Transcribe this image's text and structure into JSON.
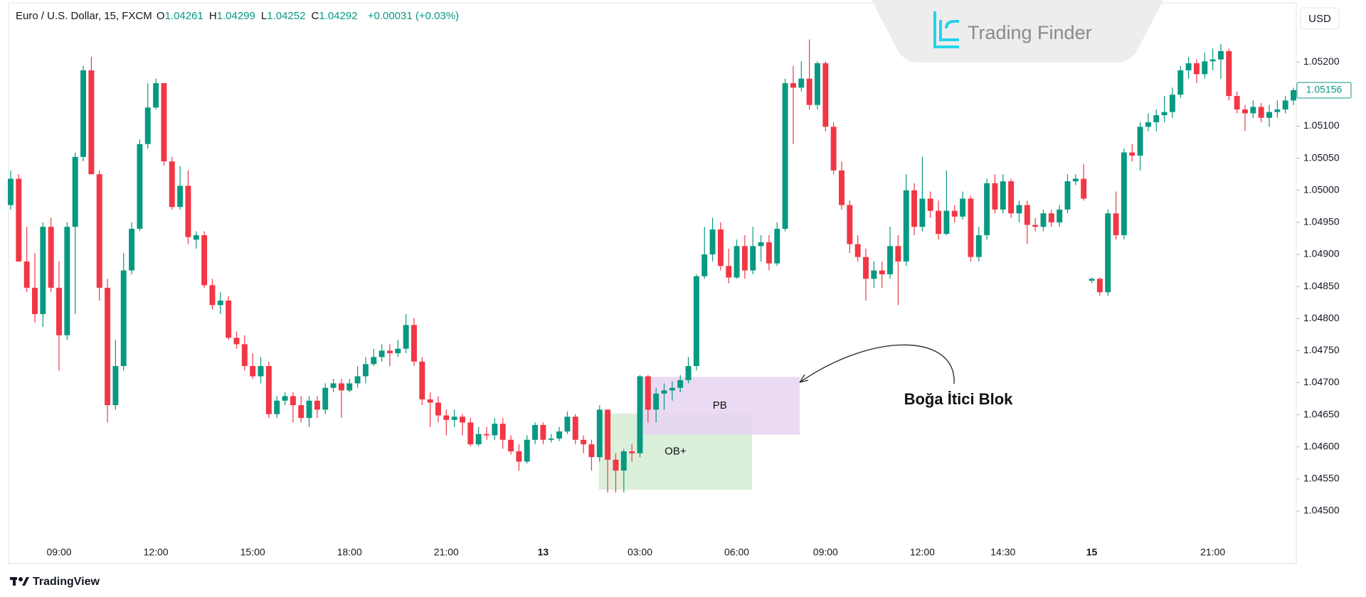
{
  "header": {
    "symbol": "Euro / U.S. Dollar, 15, FXCM",
    "ohlc": [
      {
        "label": "O",
        "value": "1.04261"
      },
      {
        "label": "H",
        "value": "1.04299"
      },
      {
        "label": "L",
        "value": "1.04252"
      },
      {
        "label": "C",
        "value": "1.04292"
      }
    ],
    "change": "+0.00031 (+0.03%)",
    "currency": "USD"
  },
  "brand": {
    "logo": "Trading Finder",
    "footer": "TradingView"
  },
  "chart_data": {
    "type": "candlestick",
    "up_color": "#089981",
    "down_color": "#f23645",
    "grid": false,
    "ylim": [
      1.04418,
      1.0529
    ],
    "yticks": [
      {
        "value": 1.045,
        "label": "1.04500"
      },
      {
        "value": 1.0455,
        "label": "1.04550"
      },
      {
        "value": 1.046,
        "label": "1.04600"
      },
      {
        "value": 1.0465,
        "label": "1.04650"
      },
      {
        "value": 1.047,
        "label": "1.04700"
      },
      {
        "value": 1.0475,
        "label": "1.04750"
      },
      {
        "value": 1.048,
        "label": "1.04800"
      },
      {
        "value": 1.0485,
        "label": "1.04850"
      },
      {
        "value": 1.049,
        "label": "1.04900"
      },
      {
        "value": 1.0495,
        "label": "1.04950"
      },
      {
        "value": 1.05,
        "label": "1.05000"
      },
      {
        "value": 1.0505,
        "label": "1.05050"
      },
      {
        "value": 1.051,
        "label": "1.05100"
      },
      {
        "value": 1.0515,
        "label": "1.05150"
      },
      {
        "value": 1.052,
        "label": "1.05200"
      }
    ],
    "categories": [
      null,
      null,
      null,
      null,
      null,
      null,
      "09:00",
      null,
      null,
      null,
      null,
      null,
      null,
      null,
      null,
      null,
      null,
      null,
      "12:00",
      null,
      null,
      null,
      null,
      null,
      null,
      null,
      null,
      null,
      null,
      null,
      "15:00",
      null,
      null,
      null,
      null,
      null,
      null,
      null,
      null,
      null,
      null,
      null,
      "18:00",
      null,
      null,
      null,
      null,
      null,
      null,
      null,
      null,
      null,
      null,
      null,
      "21:00",
      null,
      null,
      null,
      null,
      null,
      null,
      null,
      null,
      null,
      null,
      null,
      "13",
      null,
      null,
      null,
      null,
      null,
      null,
      null,
      null,
      null,
      null,
      null,
      "03:00",
      null,
      null,
      null,
      null,
      null,
      null,
      null,
      null,
      null,
      null,
      null,
      "06:00",
      null,
      null,
      null,
      null,
      null,
      null,
      null,
      null,
      null,
      null,
      "09:00",
      null,
      null,
      null,
      null,
      null,
      null,
      null,
      null,
      null,
      null,
      null,
      "12:00",
      null,
      null,
      null,
      null,
      null,
      null,
      null,
      null,
      null,
      "14:30",
      null,
      null,
      null,
      null,
      null,
      null,
      null,
      null,
      null,
      null,
      "15",
      null,
      null,
      null,
      null,
      null,
      null,
      null,
      null,
      null,
      null,
      null,
      null,
      null,
      null,
      "21:00",
      null,
      null,
      null,
      null,
      null,
      null,
      null,
      null,
      null,
      null
    ],
    "open": [
      1.04977,
      1.05018,
      1.04889,
      1.04848,
      1.04807,
      1.04943,
      1.04848,
      1.04774,
      1.04943,
      1.05052,
      1.05187,
      1.05025,
      1.04848,
      1.04665,
      1.04726,
      1.04875,
      1.0494,
      1.05072,
      1.05129,
      1.05167,
      1.05045,
      1.04974,
      1.05007,
      1.04923,
      1.0493,
      1.04852,
      1.04821,
      1.04828,
      1.0477,
      1.0476,
      1.04726,
      1.0471,
      1.04726,
      1.04651,
      1.04672,
      1.04679,
      1.04665,
      1.04645,
      1.04672,
      1.04658,
      1.04692,
      1.04699,
      1.04688,
      1.04699,
      1.0471,
      1.04729,
      1.0474,
      1.0475,
      1.04746,
      1.04753,
      1.0479,
      1.04733,
      1.04674,
      1.04669,
      1.04649,
      1.04642,
      1.04647,
      1.04638,
      1.04604,
      1.0462,
      1.04618,
      1.04636,
      1.04611,
      1.04593,
      1.04577,
      1.04611,
      1.04634,
      1.04611,
      1.04613,
      1.04624,
      1.04647,
      1.04611,
      1.04604,
      1.04584,
      1.04658,
      1.0458,
      1.04563,
      1.04593,
      1.0459,
      1.0471,
      1.04658,
      1.04683,
      1.04688,
      1.04692,
      1.04704,
      1.04726,
      1.04866,
      1.049,
      1.04939,
      1.04882,
      1.04864,
      1.04913,
      1.04875,
      1.04913,
      1.04919,
      1.04886,
      1.0494,
      1.05167,
      1.0516,
      1.05174,
      1.05133,
      1.05198,
      1.05099,
      1.05031,
      1.04977,
      1.04916,
      1.04896,
      1.04862,
      1.04875,
      1.04869,
      1.04913,
      1.04889,
      1.05,
      1.04943,
      1.04987,
      1.04968,
      1.04932,
      1.04968,
      1.04959,
      1.04987,
      1.04896,
      1.0493,
      1.05011,
      1.0497,
      1.05014,
      1.04964,
      1.04977,
      1.04946,
      1.04943,
      1.04964,
      1.0495,
      1.0497,
      1.05014,
      1.05018,
      1.04859,
      1.04862,
      1.04841,
      1.04964,
      1.0493,
      1.05059,
      1.05054,
      1.05099,
      1.05106,
      1.05117,
      1.05122,
      1.05149,
      1.05187,
      1.05198,
      1.05181,
      1.05201,
      1.05204,
      1.05217,
      1.05147,
      1.05126,
      1.0512,
      1.0513,
      1.05113,
      1.05122,
      1.05126,
      1.0514
    ],
    "high": [
      1.05031,
      1.05025,
      1.04943,
      1.04902,
      1.0495,
      1.04957,
      1.04889,
      1.0495,
      1.05059,
      1.05194,
      1.05208,
      1.05031,
      1.04862,
      1.04767,
      1.04902,
      1.0495,
      1.05079,
      1.05167,
      1.05174,
      1.05167,
      1.05052,
      1.05038,
      1.05031,
      1.04936,
      1.04936,
      1.04862,
      1.04841,
      1.04835,
      1.0478,
      1.04774,
      1.04746,
      1.0474,
      1.04733,
      1.04679,
      1.04685,
      1.04685,
      1.04679,
      1.04679,
      1.04679,
      1.04699,
      1.04706,
      1.04706,
      1.04706,
      1.04726,
      1.0474,
      1.04753,
      1.0476,
      1.0476,
      1.04767,
      1.04807,
      1.04801,
      1.0474,
      1.04685,
      1.04679,
      1.04658,
      1.04658,
      1.04651,
      1.04645,
      1.04631,
      1.04631,
      1.04645,
      1.04645,
      1.04618,
      1.04604,
      1.04618,
      1.04638,
      1.04638,
      1.0462,
      1.04631,
      1.04655,
      1.04651,
      1.04618,
      1.04611,
      1.04665,
      1.04658,
      1.0459,
      1.04597,
      1.04604,
      1.04712,
      1.04712,
      1.04692,
      1.04699,
      1.04702,
      1.04712,
      1.0474,
      1.04869,
      1.04943,
      1.04957,
      1.0495,
      1.04909,
      1.04923,
      1.0493,
      1.04943,
      1.0493,
      1.0493,
      1.0495,
      1.05174,
      1.05194,
      1.05201,
      1.05235,
      1.05201,
      1.05201,
      1.05106,
      1.05045,
      1.04984,
      1.0493,
      1.04909,
      1.04889,
      1.04889,
      1.04943,
      1.0493,
      1.05025,
      1.05011,
      1.05052,
      1.04998,
      1.04984,
      1.05031,
      1.04977,
      1.04998,
      1.04991,
      1.04943,
      1.05018,
      1.05025,
      1.05025,
      1.05018,
      1.04984,
      1.04984,
      1.04957,
      1.0497,
      1.0497,
      1.04977,
      1.05025,
      1.05025,
      1.05041,
      1.04864,
      1.04864,
      1.0497,
      1.04998,
      1.05065,
      1.05072,
      1.05106,
      1.0512,
      1.05126,
      1.05147,
      1.0516,
      1.05194,
      1.05208,
      1.05204,
      1.05215,
      1.05221,
      1.05228,
      1.05221,
      1.05154,
      1.05133,
      1.0514,
      1.05136,
      1.05133,
      1.0514,
      1.05147,
      1.0516
    ],
    "low": [
      1.0497,
      1.04889,
      1.04841,
      1.04794,
      1.04787,
      1.04841,
      1.04719,
      1.04767,
      1.04807,
      1.05045,
      1.05025,
      1.04828,
      1.04638,
      1.04658,
      1.04719,
      1.04869,
      1.04936,
      1.05065,
      1.05126,
      1.05038,
      1.0497,
      1.0497,
      1.04916,
      1.04909,
      1.04848,
      1.04814,
      1.04807,
      1.04767,
      1.04753,
      1.04719,
      1.04706,
      1.04699,
      1.04645,
      1.04645,
      1.04665,
      1.04638,
      1.04638,
      1.04631,
      1.04645,
      1.04651,
      1.04685,
      1.04645,
      1.04685,
      1.04692,
      1.04699,
      1.04726,
      1.04733,
      1.04726,
      1.0474,
      1.04746,
      1.04726,
      1.04665,
      1.04631,
      1.04638,
      1.04618,
      1.04631,
      1.04618,
      1.04601,
      1.04601,
      1.04611,
      1.04611,
      1.04597,
      1.04588,
      1.04563,
      1.04574,
      1.04604,
      1.04604,
      1.04607,
      1.04609,
      1.0462,
      1.04604,
      1.0459,
      1.04563,
      1.04577,
      1.04529,
      1.04529,
      1.04529,
      1.04577,
      1.04584,
      1.04638,
      1.04638,
      1.04658,
      1.04672,
      1.04685,
      1.04699,
      1.04719,
      1.04862,
      1.04889,
      1.04875,
      1.04855,
      1.04862,
      1.04862,
      1.04869,
      1.04889,
      1.04875,
      1.04882,
      1.04936,
      1.05072,
      1.05154,
      1.05126,
      1.05126,
      1.05092,
      1.05025,
      1.0497,
      1.04902,
      1.04889,
      1.04828,
      1.04848,
      1.04848,
      1.04862,
      1.04821,
      1.04882,
      1.0493,
      1.04936,
      1.04957,
      1.04923,
      1.0493,
      1.0495,
      1.04954,
      1.04889,
      1.04889,
      1.04923,
      1.04964,
      1.04964,
      1.04957,
      1.0495,
      1.04916,
      1.04936,
      1.04936,
      1.04943,
      1.04943,
      1.04964,
      1.05008,
      1.04984,
      1.04855,
      1.04835,
      1.04835,
      1.04923,
      1.04923,
      1.05045,
      1.05031,
      1.05092,
      1.05092,
      1.05106,
      1.05113,
      1.05144,
      1.05174,
      1.05167,
      1.05174,
      1.05187,
      1.05174,
      1.0514,
      1.0512,
      1.05092,
      1.05113,
      1.05106,
      1.05099,
      1.05113,
      1.0512,
      1.05133
    ],
    "close": [
      1.05018,
      1.04889,
      1.04848,
      1.04807,
      1.04943,
      1.04848,
      1.04774,
      1.04943,
      1.05052,
      1.05187,
      1.05025,
      1.04848,
      1.04665,
      1.04726,
      1.04875,
      1.0494,
      1.05072,
      1.05129,
      1.05167,
      1.05045,
      1.04974,
      1.05007,
      1.04927,
      1.0493,
      1.04852,
      1.04821,
      1.04828,
      1.0477,
      1.0476,
      1.04726,
      1.0471,
      1.04726,
      1.04651,
      1.04672,
      1.04679,
      1.04665,
      1.04645,
      1.04672,
      1.04658,
      1.04692,
      1.04699,
      1.04688,
      1.04699,
      1.0471,
      1.04729,
      1.0474,
      1.0475,
      1.04746,
      1.04753,
      1.0479,
      1.04733,
      1.04674,
      1.04669,
      1.04649,
      1.04642,
      1.04647,
      1.04638,
      1.04604,
      1.0462,
      1.04618,
      1.04636,
      1.04611,
      1.04593,
      1.04577,
      1.04611,
      1.04634,
      1.04611,
      1.04613,
      1.04624,
      1.04647,
      1.04611,
      1.04604,
      1.04584,
      1.04658,
      1.0458,
      1.04563,
      1.04593,
      1.0459,
      1.0471,
      1.04658,
      1.04683,
      1.04688,
      1.04692,
      1.04704,
      1.04726,
      1.04866,
      1.049,
      1.04939,
      1.04882,
      1.04864,
      1.04913,
      1.04875,
      1.04913,
      1.04919,
      1.04886,
      1.0494,
      1.05167,
      1.0516,
      1.05174,
      1.05133,
      1.05198,
      1.05099,
      1.05031,
      1.04977,
      1.04916,
      1.04896,
      1.04862,
      1.04875,
      1.04869,
      1.04913,
      1.04889,
      1.05,
      1.04943,
      1.04987,
      1.04968,
      1.04932,
      1.04968,
      1.04959,
      1.04987,
      1.04896,
      1.0493,
      1.05011,
      1.0497,
      1.05014,
      1.04964,
      1.04977,
      1.04946,
      1.04943,
      1.04964,
      1.0495,
      1.0497,
      1.05014,
      1.05018,
      1.04987,
      1.04862,
      1.04841,
      1.04964,
      1.0493,
      1.05059,
      1.05054,
      1.05099,
      1.05106,
      1.05117,
      1.05122,
      1.05149,
      1.05187,
      1.05198,
      1.05181,
      1.05201,
      1.05204,
      1.05217,
      1.05147,
      1.05126,
      1.0512,
      1.0513,
      1.05113,
      1.05122,
      1.05126,
      1.0514,
      1.05156
    ],
    "zones": [
      {
        "label": "OB+",
        "high": 1.04652,
        "low": 1.04533,
        "color": "#d6ecd4"
      },
      {
        "label": "PB",
        "high": 1.04709,
        "low": 1.04619,
        "color": "#e6d3f1"
      }
    ],
    "annotation": "Boğa İtici Blok"
  }
}
